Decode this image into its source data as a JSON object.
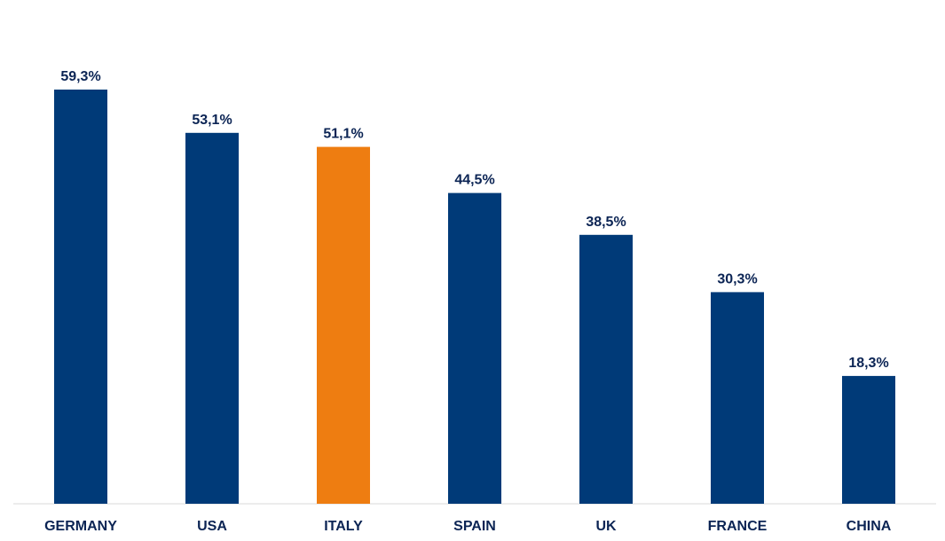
{
  "chart_data": {
    "type": "bar",
    "title": "",
    "xlabel": "",
    "ylabel": "",
    "categories": [
      "GERMANY",
      "USA",
      "ITALY",
      "SPAIN",
      "UK",
      "FRANCE",
      "CHINA"
    ],
    "values": [
      59.3,
      53.1,
      51.1,
      44.5,
      38.5,
      30.3,
      18.3
    ],
    "value_labels": [
      "59,3%",
      "53,1%",
      "51,1%",
      "44,5%",
      "38,5%",
      "30,3%",
      "18,3%"
    ],
    "unit": "%",
    "ylim": [
      0,
      59.3
    ],
    "grid": false,
    "legend": "none",
    "highlight_category": "ITALY"
  },
  "colors": {
    "bar_default": "#003A78",
    "bar_highlight": "#EE7D11",
    "label_text": "#0B2454",
    "axis_line": "#D9D9D9",
    "background": "#FFFFFF"
  }
}
